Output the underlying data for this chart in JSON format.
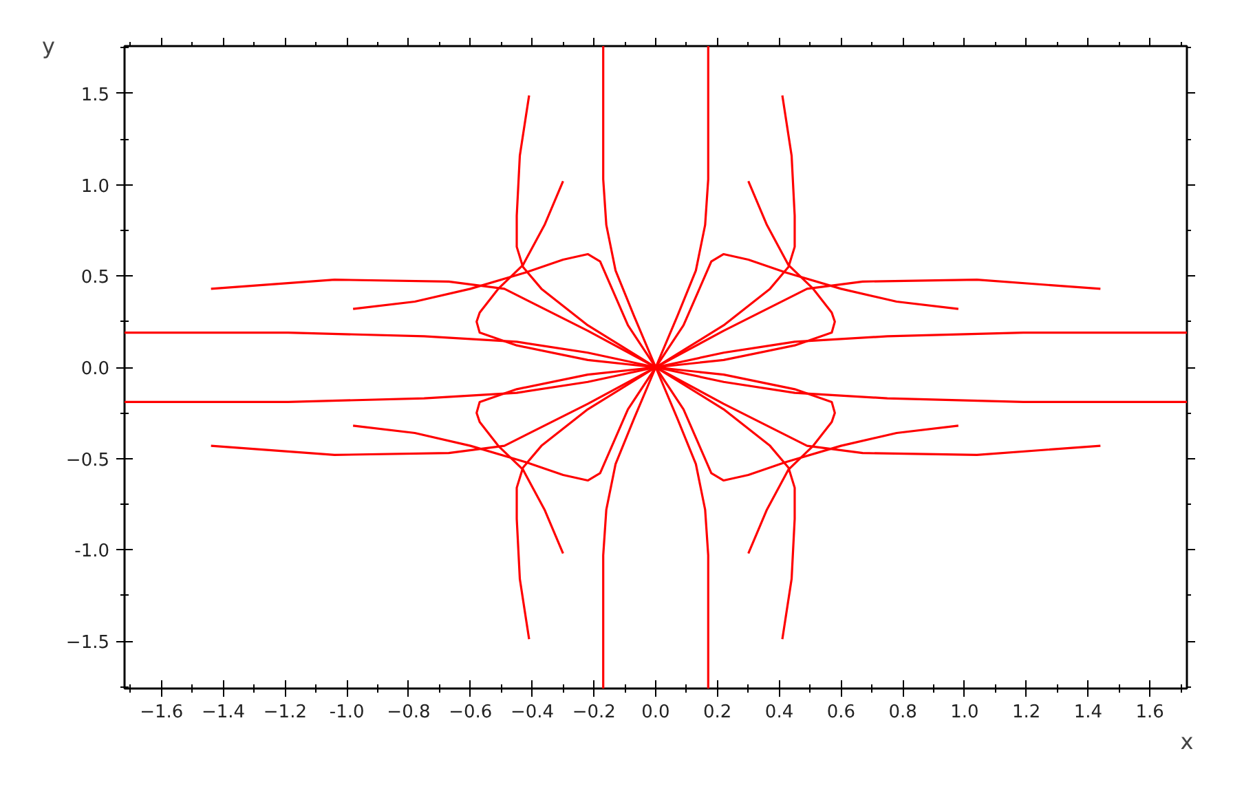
{
  "chart_data": {
    "type": "line",
    "xlabel": "x",
    "ylabel": "y",
    "xlim": [
      -1.72,
      1.72
    ],
    "ylim": [
      -1.76,
      1.76
    ],
    "xticks": [
      -1.6,
      -1.4,
      -1.2,
      {
        "value": -1.0,
        "label": "-1.0"
      },
      -0.8,
      -0.6,
      -0.4,
      -0.2,
      {
        "value": 0,
        "label": "0.0"
      },
      0.2,
      0.4,
      0.6,
      0.8,
      {
        "value": 1.0,
        "label": "1.0"
      },
      1.2,
      1.4,
      1.6,
      {
        "value": -1.7,
        "label": null
      },
      {
        "value": -1.5,
        "label": null
      },
      {
        "value": -1.3,
        "label": null
      },
      {
        "value": -1.1,
        "label": null
      },
      {
        "value": -0.9,
        "label": null
      },
      {
        "value": -0.7,
        "label": null
      },
      {
        "value": -0.5,
        "label": null
      },
      {
        "value": -0.3,
        "label": null
      },
      {
        "value": -0.1,
        "label": null
      },
      {
        "value": 0.1,
        "label": null
      },
      {
        "value": 0.3,
        "label": null
      },
      {
        "value": 0.5,
        "label": null
      },
      {
        "value": 0.7,
        "label": null
      },
      {
        "value": 0.9,
        "label": null
      },
      {
        "value": 1.1,
        "label": null
      },
      {
        "value": 1.3,
        "label": null
      },
      {
        "value": 1.5,
        "label": null
      },
      {
        "value": 1.7,
        "label": null
      }
    ],
    "yticks": [
      -1.5,
      {
        "value": -1.0,
        "label": "-1.0"
      },
      -0.5,
      {
        "value": 0,
        "label": "0.0"
      },
      0.5,
      {
        "value": 1.0,
        "label": "1.0"
      },
      1.5,
      {
        "value": -1.75,
        "label": null
      },
      {
        "value": -1.25,
        "label": null
      },
      {
        "value": -0.75,
        "label": null
      },
      {
        "value": -0.25,
        "label": null
      },
      {
        "value": 0.25,
        "label": null
      },
      {
        "value": 0.75,
        "label": null
      },
      {
        "value": 1.25,
        "label": null
      },
      {
        "value": 1.75,
        "label": null
      }
    ],
    "grid": false,
    "marker": "none",
    "line_style": "solid",
    "series": [
      {
        "color": "#ff0000",
        "x": [
          -0.17,
          -0.17,
          -0.17,
          -0.16,
          -0.13,
          -0.07,
          0,
          0.07,
          0.13,
          0.16,
          0.17,
          0.17,
          0.17
        ],
        "values": [
          -1.76,
          -1.53,
          -1.03,
          -0.78,
          -0.53,
          -0.28,
          0,
          0.28,
          0.53,
          0.78,
          1.03,
          1.53,
          1.76
        ]
      },
      {
        "color": "#ff0000",
        "x": [
          -0.17,
          -0.17,
          -0.17,
          -0.16,
          -0.13,
          -0.07,
          0,
          0.07,
          0.13,
          0.16,
          0.17,
          0.17,
          0.17
        ],
        "values": [
          1.76,
          1.53,
          1.03,
          0.78,
          0.53,
          0.28,
          0,
          -0.28,
          -0.53,
          -0.78,
          -1.03,
          -1.53,
          -1.76
        ]
      },
      {
        "color": "#ff0000",
        "x": [
          -1.72,
          -1.19,
          -0.75,
          -0.45,
          -0.22,
          0,
          0.22,
          0.45,
          0.75,
          1.19,
          1.72
        ],
        "values": [
          -0.19,
          -0.19,
          -0.17,
          -0.14,
          -0.08,
          0,
          0.08,
          0.14,
          0.17,
          0.19,
          0.19
        ]
      },
      {
        "color": "#ff0000",
        "x": [
          -1.72,
          -1.19,
          -0.75,
          -0.45,
          -0.22,
          0,
          0.22,
          0.45,
          0.75,
          1.19,
          1.72
        ],
        "values": [
          0.19,
          0.19,
          0.17,
          0.14,
          0.08,
          0,
          -0.08,
          -0.14,
          -0.17,
          -0.19,
          -0.19
        ]
      },
      {
        "color": "#ff0000",
        "x": [
          0.41,
          0.44,
          0.45,
          0.45,
          0.43,
          0.37,
          0.22,
          0,
          -0.22,
          -0.37,
          -0.43,
          -0.45,
          -0.45,
          -0.44,
          -0.41
        ],
        "values": [
          1.49,
          1.16,
          0.83,
          0.66,
          0.55,
          0.43,
          0.23,
          0,
          -0.23,
          -0.43,
          -0.55,
          -0.66,
          -0.83,
          -1.16,
          -1.49
        ]
      },
      {
        "color": "#ff0000",
        "x": [
          -0.41,
          -0.44,
          -0.45,
          -0.45,
          -0.43,
          -0.37,
          -0.22,
          0,
          0.22,
          0.37,
          0.43,
          0.45,
          0.45,
          0.44,
          0.41
        ],
        "values": [
          1.49,
          1.16,
          0.83,
          0.66,
          0.55,
          0.43,
          0.23,
          0,
          -0.23,
          -0.43,
          -0.55,
          -0.66,
          -0.83,
          -1.16,
          -1.49
        ]
      },
      {
        "color": "#ff0000",
        "x": [
          0.3,
          0.36,
          0.43,
          0.51,
          0.57,
          0.58,
          0.57,
          0.45,
          0.22,
          0,
          -0.22,
          -0.45,
          -0.57,
          -0.58,
          -0.57,
          -0.51,
          -0.43,
          -0.36,
          -0.3
        ],
        "values": [
          1.02,
          0.78,
          0.56,
          0.43,
          0.3,
          0.25,
          0.19,
          0.12,
          0.04,
          0,
          -0.04,
          -0.12,
          -0.19,
          -0.25,
          -0.3,
          -0.43,
          -0.56,
          -0.78,
          -1.02
        ]
      },
      {
        "color": "#ff0000",
        "x": [
          -0.3,
          -0.36,
          -0.43,
          -0.51,
          -0.57,
          -0.58,
          -0.57,
          -0.45,
          -0.22,
          0,
          0.22,
          0.45,
          0.57,
          0.58,
          0.57,
          0.51,
          0.43,
          0.36,
          0.3
        ],
        "values": [
          1.02,
          0.78,
          0.56,
          0.43,
          0.3,
          0.25,
          0.19,
          0.12,
          0.04,
          0,
          -0.04,
          -0.12,
          -0.19,
          -0.25,
          -0.3,
          -0.43,
          -0.56,
          -0.78,
          -1.02
        ]
      },
      {
        "color": "#ff0000",
        "x": [
          -0.98,
          -0.78,
          -0.6,
          -0.42,
          -0.3,
          -0.22,
          -0.18,
          -0.09,
          0,
          0.09,
          0.18,
          0.22,
          0.3,
          0.42,
          0.6,
          0.78,
          0.98
        ],
        "values": [
          -0.32,
          -0.36,
          -0.43,
          -0.52,
          -0.59,
          -0.62,
          -0.58,
          -0.23,
          0,
          0.23,
          0.58,
          0.62,
          0.59,
          0.52,
          0.43,
          0.36,
          0.32
        ]
      },
      {
        "color": "#ff0000",
        "x": [
          -0.98,
          -0.78,
          -0.6,
          -0.42,
          -0.3,
          -0.22,
          -0.18,
          -0.09,
          0,
          0.09,
          0.18,
          0.22,
          0.3,
          0.42,
          0.6,
          0.78,
          0.98
        ],
        "values": [
          0.32,
          0.36,
          0.43,
          0.52,
          0.59,
          0.62,
          0.58,
          0.23,
          0,
          -0.23,
          -0.58,
          -0.62,
          -0.59,
          -0.52,
          -0.43,
          -0.36,
          -0.32
        ]
      },
      {
        "color": "#ff0000",
        "x": [
          -1.44,
          -1.04,
          -0.67,
          -0.49,
          -0.22,
          0,
          0.22,
          0.49,
          0.67,
          1.04,
          1.44
        ],
        "values": [
          -0.43,
          -0.48,
          -0.47,
          -0.43,
          -0.2,
          0,
          0.2,
          0.43,
          0.47,
          0.48,
          0.43
        ]
      },
      {
        "color": "#ff0000",
        "x": [
          -1.44,
          -1.04,
          -0.67,
          -0.49,
          -0.22,
          0,
          0.22,
          0.49,
          0.67,
          1.04,
          1.44
        ],
        "values": [
          0.43,
          0.48,
          0.47,
          0.43,
          0.2,
          0,
          -0.2,
          -0.43,
          -0.47,
          -0.48,
          -0.43
        ]
      }
    ]
  }
}
